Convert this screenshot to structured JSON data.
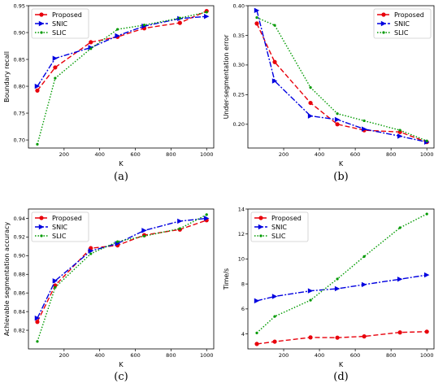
{
  "chart_data": [
    {
      "type": "line",
      "caption": "(a)",
      "xlabel": "K",
      "ylabel": "Boundary recall",
      "xlim": [
        0,
        1040
      ],
      "ylim": [
        0.685,
        0.95
      ],
      "xticks": [
        200,
        400,
        600,
        800,
        1000
      ],
      "yticks": [
        0.7,
        0.75,
        0.8,
        0.85,
        0.9,
        0.95
      ],
      "yticklabels": [
        "0.70",
        "0.75",
        "0.80",
        "0.85",
        "0.90",
        "0.95"
      ],
      "legend_position": "top-left",
      "series": [
        {
          "name": "Proposed",
          "color": "#e8000b",
          "dash": "6,3",
          "marker": "circle",
          "x": [
            50,
            150,
            350,
            500,
            650,
            850,
            1000
          ],
          "y": [
            0.792,
            0.835,
            0.882,
            0.892,
            0.908,
            0.918,
            0.94
          ]
        },
        {
          "name": "SNIC",
          "color": "#0000e0",
          "dash": "7,2,2,2",
          "marker": "triangle-right",
          "x": [
            50,
            150,
            350,
            500,
            650,
            850,
            1000
          ],
          "y": [
            0.8,
            0.852,
            0.872,
            0.894,
            0.912,
            0.926,
            0.93
          ]
        },
        {
          "name": "SLIC",
          "color": "#009a00",
          "dash": "1.5,2",
          "marker": "dot",
          "x": [
            50,
            150,
            350,
            500,
            650,
            850,
            1000
          ],
          "y": [
            0.692,
            0.815,
            0.87,
            0.906,
            0.914,
            0.927,
            0.938
          ]
        }
      ]
    },
    {
      "type": "line",
      "caption": "(b)",
      "xlabel": "K",
      "ylabel": "Under-segmentation error",
      "xlim": [
        0,
        1040
      ],
      "ylim": [
        0.16,
        0.4
      ],
      "xticks": [
        200,
        400,
        600,
        800,
        1000
      ],
      "yticks": [
        0.2,
        0.25,
        0.3,
        0.35,
        0.4
      ],
      "yticklabels": [
        "0.20",
        "0.25",
        "0.30",
        "0.35",
        "0.40"
      ],
      "legend_position": "top-right",
      "series": [
        {
          "name": "Proposed",
          "color": "#e8000b",
          "dash": "6,3",
          "marker": "circle",
          "x": [
            50,
            150,
            350,
            500,
            650,
            850,
            1000
          ],
          "y": [
            0.37,
            0.305,
            0.236,
            0.2,
            0.19,
            0.187,
            0.17
          ]
        },
        {
          "name": "SNIC",
          "color": "#0000e0",
          "dash": "7,2,2,2",
          "marker": "triangle-right",
          "x": [
            50,
            150,
            350,
            500,
            650,
            850,
            1000
          ],
          "y": [
            0.392,
            0.273,
            0.214,
            0.208,
            0.192,
            0.18,
            0.17
          ]
        },
        {
          "name": "SLIC",
          "color": "#009a00",
          "dash": "1.5,2",
          "marker": "dot",
          "x": [
            50,
            150,
            350,
            500,
            650,
            850,
            1000
          ],
          "y": [
            0.38,
            0.367,
            0.262,
            0.218,
            0.206,
            0.19,
            0.172
          ]
        }
      ]
    },
    {
      "type": "line",
      "caption": "(c)",
      "xlabel": "K",
      "ylabel": "Achievable segmentation accuracy",
      "xlim": [
        0,
        1040
      ],
      "ylim": [
        0.8,
        0.95
      ],
      "xticks": [
        200,
        400,
        600,
        800,
        1000
      ],
      "yticks": [
        0.82,
        0.84,
        0.86,
        0.88,
        0.9,
        0.92,
        0.94
      ],
      "yticklabels": [
        "0.82",
        "0.84",
        "0.86",
        "0.88",
        "0.90",
        "0.92",
        "0.94"
      ],
      "legend_position": "top-left",
      "series": [
        {
          "name": "Proposed",
          "color": "#e8000b",
          "dash": "6,3",
          "marker": "circle",
          "x": [
            50,
            150,
            350,
            500,
            650,
            850,
            1000
          ],
          "y": [
            0.829,
            0.868,
            0.908,
            0.911,
            0.922,
            0.928,
            0.938
          ]
        },
        {
          "name": "SNIC",
          "color": "#0000e0",
          "dash": "7,2,2,2",
          "marker": "triangle-right",
          "x": [
            50,
            150,
            350,
            500,
            650,
            850,
            1000
          ],
          "y": [
            0.833,
            0.873,
            0.905,
            0.913,
            0.927,
            0.937,
            0.94
          ]
        },
        {
          "name": "SLIC",
          "color": "#009a00",
          "dash": "1.5,2",
          "marker": "dot",
          "x": [
            50,
            150,
            350,
            500,
            650,
            850,
            1000
          ],
          "y": [
            0.808,
            0.866,
            0.902,
            0.915,
            0.921,
            0.929,
            0.944
          ]
        }
      ]
    },
    {
      "type": "line",
      "caption": "(d)",
      "xlabel": "K",
      "ylabel": "Time/s",
      "xlim": [
        0,
        1040
      ],
      "ylim": [
        2.8,
        14.0
      ],
      "xticks": [
        200,
        400,
        600,
        800,
        1000
      ],
      "yticks": [
        4,
        6,
        8,
        10,
        12,
        14
      ],
      "yticklabels": [
        "4",
        "6",
        "8",
        "10",
        "12",
        "14"
      ],
      "legend_position": "top-left",
      "series": [
        {
          "name": "Proposed",
          "color": "#e8000b",
          "dash": "6,3",
          "marker": "circle",
          "x": [
            50,
            150,
            350,
            500,
            650,
            850,
            1000
          ],
          "y": [
            3.2,
            3.38,
            3.72,
            3.7,
            3.8,
            4.12,
            4.18
          ]
        },
        {
          "name": "SNIC",
          "color": "#0000e0",
          "dash": "7,2,2,2",
          "marker": "triangle-right",
          "x": [
            50,
            150,
            350,
            500,
            650,
            850,
            1000
          ],
          "y": [
            6.65,
            7.0,
            7.45,
            7.62,
            7.95,
            8.38,
            8.72
          ]
        },
        {
          "name": "SLIC",
          "color": "#009a00",
          "dash": "1.5,2",
          "marker": "dot",
          "x": [
            50,
            150,
            350,
            500,
            650,
            850,
            1000
          ],
          "y": [
            4.08,
            5.4,
            6.7,
            8.4,
            10.2,
            12.5,
            13.6
          ]
        }
      ]
    }
  ]
}
